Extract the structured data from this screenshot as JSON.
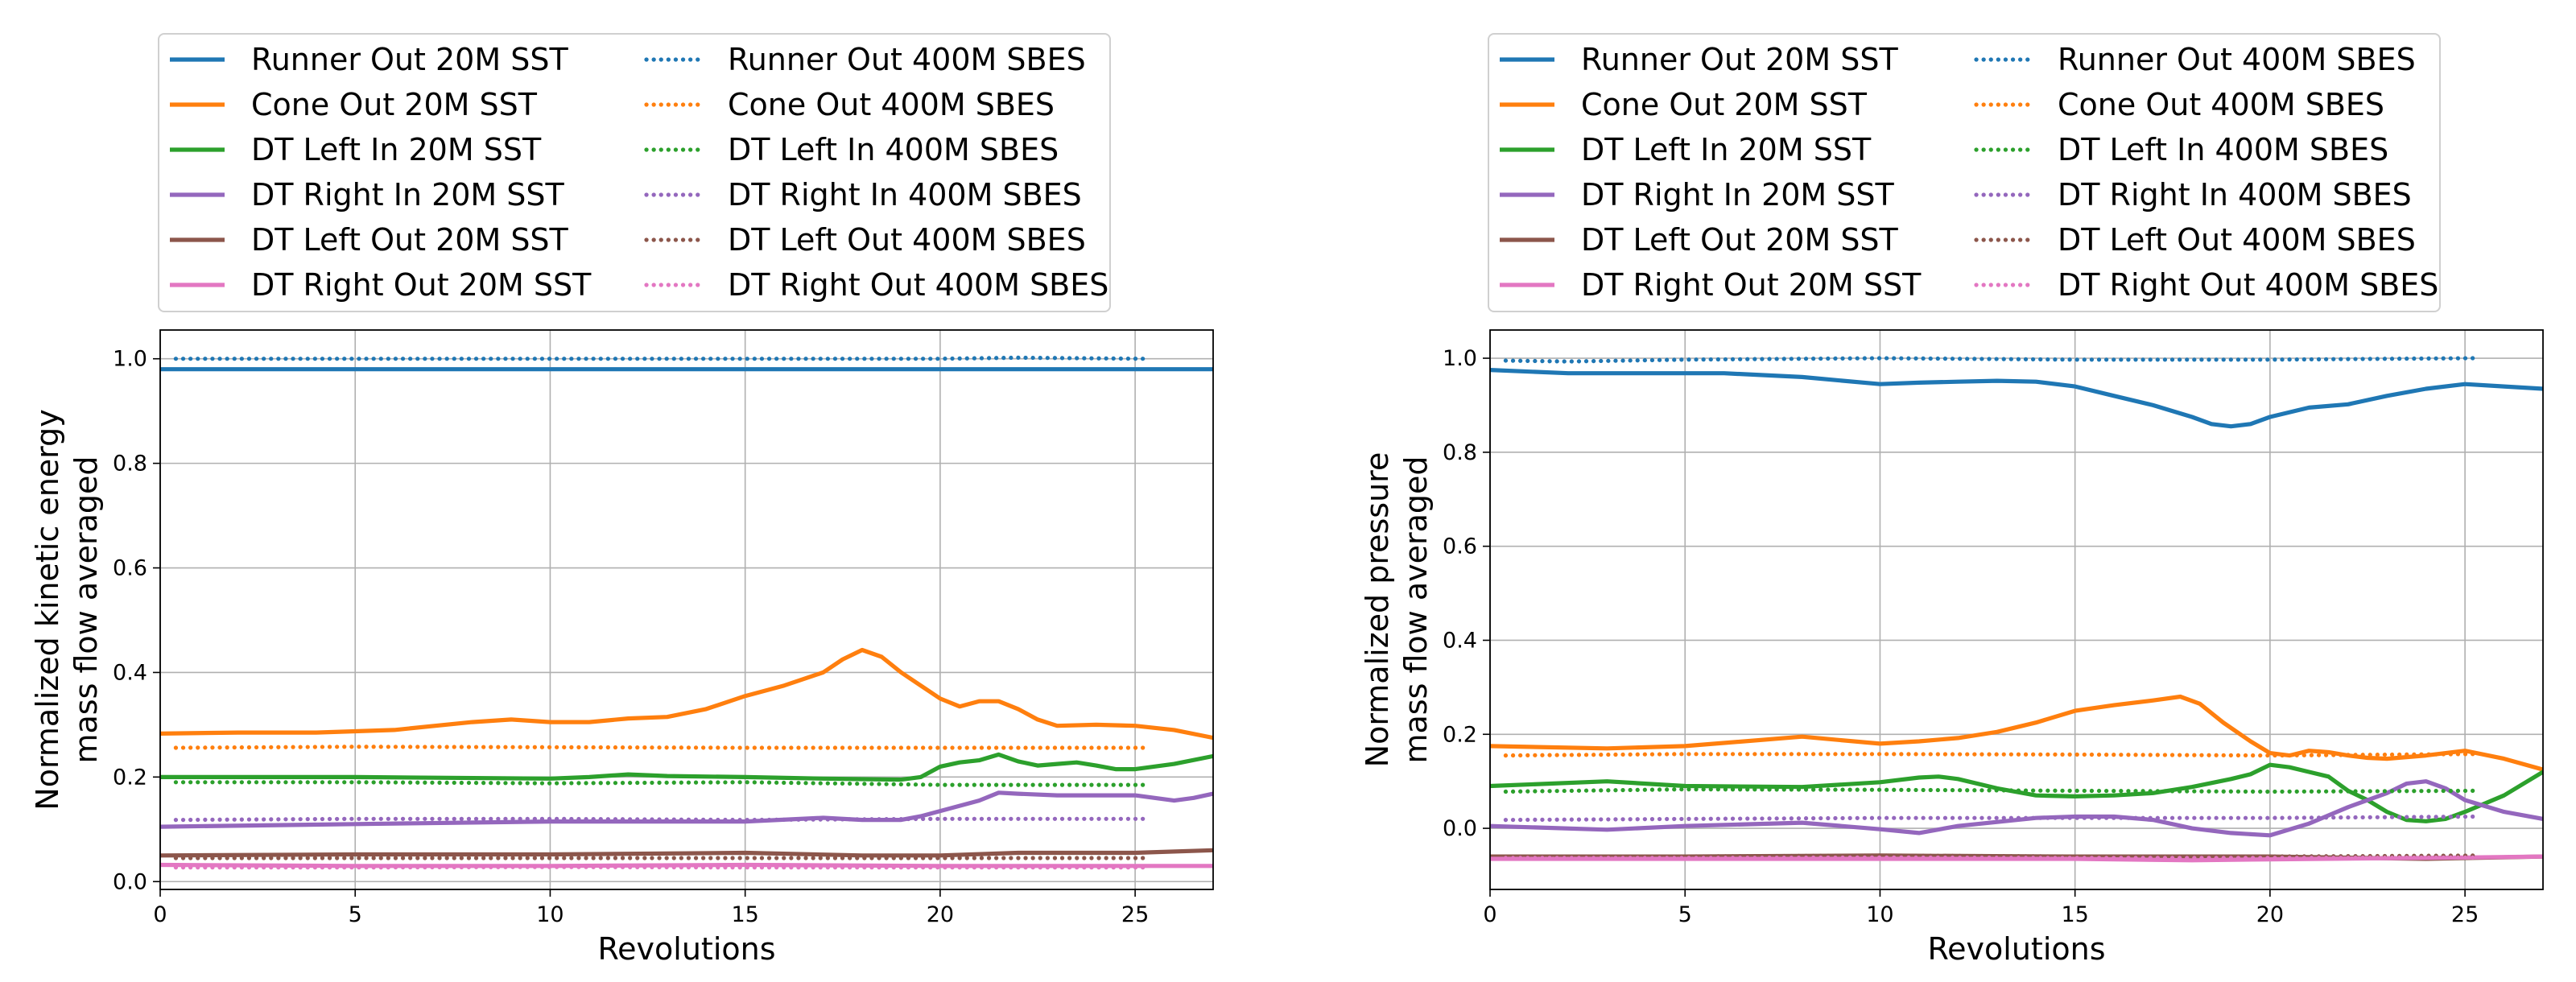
{
  "chart_data": [
    {
      "type": "line",
      "title": "",
      "xlabel": "Revolutions",
      "ylabel": "Normalized kinetic energy\nmass flow averaged",
      "xlim": [
        0,
        27
      ],
      "ylim": [
        -0.015,
        1.055
      ],
      "xticks": [
        0,
        5,
        10,
        15,
        20,
        25
      ],
      "yticks": [
        0.0,
        0.2,
        0.4,
        0.6,
        0.8,
        1.0
      ],
      "grid": true,
      "legend_location": "above",
      "series": [
        {
          "name": "Runner Out 20M SST",
          "color": "#1f77b4",
          "style": "solid",
          "x": [
            0,
            5,
            10,
            15,
            20,
            25,
            27
          ],
          "y": [
            0.98,
            0.98,
            0.98,
            0.98,
            0.98,
            0.98,
            0.98
          ]
        },
        {
          "name": "Cone Out 20M SST",
          "color": "#ff7f0e",
          "style": "solid",
          "x": [
            0,
            2,
            4,
            6,
            8,
            9,
            10,
            11,
            12,
            13,
            14,
            15,
            16,
            17,
            17.5,
            18,
            18.5,
            19,
            19.5,
            20,
            20.5,
            21,
            21.5,
            22,
            22.5,
            23,
            24,
            25,
            26,
            27
          ],
          "y": [
            0.283,
            0.285,
            0.285,
            0.29,
            0.305,
            0.31,
            0.305,
            0.305,
            0.312,
            0.315,
            0.33,
            0.355,
            0.375,
            0.4,
            0.425,
            0.443,
            0.43,
            0.4,
            0.375,
            0.35,
            0.335,
            0.345,
            0.345,
            0.33,
            0.31,
            0.298,
            0.3,
            0.298,
            0.29,
            0.275
          ]
        },
        {
          "name": "DT Left In 20M SST",
          "color": "#2ca02c",
          "style": "solid",
          "x": [
            0,
            5,
            10,
            11,
            12,
            13,
            15,
            17,
            19,
            19.5,
            20,
            20.5,
            21,
            21.5,
            22,
            22.5,
            23,
            23.5,
            24,
            24.5,
            25,
            26,
            27
          ],
          "y": [
            0.2,
            0.2,
            0.197,
            0.2,
            0.205,
            0.202,
            0.2,
            0.197,
            0.195,
            0.2,
            0.22,
            0.228,
            0.232,
            0.243,
            0.23,
            0.222,
            0.225,
            0.228,
            0.222,
            0.215,
            0.215,
            0.225,
            0.24
          ]
        },
        {
          "name": "DT Right In 20M SST",
          "color": "#9467bd",
          "style": "solid",
          "x": [
            0,
            5,
            10,
            15,
            17,
            18,
            19,
            19.5,
            20,
            20.5,
            21,
            21.5,
            22,
            23,
            24,
            25,
            26,
            26.5,
            27
          ],
          "y": [
            0.105,
            0.11,
            0.115,
            0.115,
            0.122,
            0.118,
            0.118,
            0.125,
            0.135,
            0.145,
            0.155,
            0.17,
            0.168,
            0.165,
            0.165,
            0.165,
            0.155,
            0.16,
            0.168
          ]
        },
        {
          "name": "DT Left Out 20M SST",
          "color": "#8c564b",
          "style": "solid",
          "x": [
            0,
            5,
            10,
            15,
            18,
            20,
            22,
            25,
            27
          ],
          "y": [
            0.05,
            0.052,
            0.052,
            0.055,
            0.05,
            0.05,
            0.055,
            0.055,
            0.06
          ]
        },
        {
          "name": "DT Right Out 20M SST",
          "color": "#e377c2",
          "style": "solid",
          "x": [
            0,
            5,
            10,
            15,
            20,
            25,
            27
          ],
          "y": [
            0.032,
            0.03,
            0.03,
            0.032,
            0.03,
            0.03,
            0.03
          ]
        },
        {
          "name": "Runner Out 400M SBES",
          "color": "#1f77b4",
          "style": "dotted",
          "x": [
            0.4,
            5,
            10,
            15,
            20,
            22,
            25.2
          ],
          "y": [
            1.0,
            1.0,
            1.0,
            1.0,
            1.0,
            1.002,
            1.0
          ]
        },
        {
          "name": "Cone Out 400M SBES",
          "color": "#ff7f0e",
          "style": "dotted",
          "x": [
            0.4,
            5,
            10,
            15,
            20,
            25.2
          ],
          "y": [
            0.256,
            0.258,
            0.257,
            0.256,
            0.256,
            0.256
          ]
        },
        {
          "name": "DT Left In 400M SBES",
          "color": "#2ca02c",
          "style": "dotted",
          "x": [
            0.4,
            5,
            10,
            15,
            20,
            25.2
          ],
          "y": [
            0.19,
            0.19,
            0.188,
            0.19,
            0.185,
            0.185
          ]
        },
        {
          "name": "DT Right In 400M SBES",
          "color": "#9467bd",
          "style": "dotted",
          "x": [
            0.4,
            5,
            10,
            15,
            20,
            25.2
          ],
          "y": [
            0.118,
            0.12,
            0.12,
            0.118,
            0.12,
            0.12
          ]
        },
        {
          "name": "DT Left Out 400M SBES",
          "color": "#8c564b",
          "style": "dotted",
          "x": [
            0.4,
            5,
            10,
            15,
            20,
            25.2
          ],
          "y": [
            0.045,
            0.045,
            0.045,
            0.045,
            0.045,
            0.045
          ]
        },
        {
          "name": "DT Right Out 400M SBES",
          "color": "#e377c2",
          "style": "dotted",
          "x": [
            0.4,
            5,
            10,
            15,
            20,
            25.2
          ],
          "y": [
            0.027,
            0.027,
            0.028,
            0.027,
            0.027,
            0.027
          ]
        }
      ]
    },
    {
      "type": "line",
      "title": "",
      "xlabel": "Revolutions",
      "ylabel": "Normalized pressure\nmass flow averaged",
      "xlim": [
        0,
        27
      ],
      "ylim": [
        -0.13,
        1.06
      ],
      "xticks": [
        0,
        5,
        10,
        15,
        20,
        25
      ],
      "yticks": [
        0.0,
        0.2,
        0.4,
        0.6,
        0.8,
        1.0
      ],
      "grid": true,
      "legend_location": "above",
      "series": [
        {
          "name": "Runner Out 20M SST",
          "color": "#1f77b4",
          "style": "solid",
          "x": [
            0,
            2,
            4,
            6,
            8,
            10,
            11,
            12,
            13,
            14,
            15,
            16,
            17,
            18,
            18.5,
            19,
            19.5,
            20,
            21,
            22,
            23,
            24,
            25,
            26,
            27
          ],
          "y": [
            0.975,
            0.968,
            0.968,
            0.968,
            0.96,
            0.945,
            0.948,
            0.95,
            0.952,
            0.95,
            0.94,
            0.92,
            0.9,
            0.875,
            0.86,
            0.855,
            0.86,
            0.875,
            0.895,
            0.902,
            0.92,
            0.935,
            0.945,
            0.94,
            0.935
          ]
        },
        {
          "name": "Cone Out 20M SST",
          "color": "#ff7f0e",
          "style": "solid",
          "x": [
            0,
            3,
            5,
            8,
            10,
            11,
            12,
            13,
            14,
            15,
            16,
            17,
            17.7,
            18.2,
            18.8,
            19.5,
            20,
            20.5,
            21,
            21.5,
            22,
            22.5,
            23,
            24,
            25,
            26,
            27
          ],
          "y": [
            0.175,
            0.17,
            0.175,
            0.195,
            0.18,
            0.185,
            0.192,
            0.205,
            0.225,
            0.25,
            0.262,
            0.272,
            0.28,
            0.265,
            0.225,
            0.185,
            0.16,
            0.155,
            0.165,
            0.162,
            0.155,
            0.15,
            0.148,
            0.155,
            0.165,
            0.148,
            0.125
          ]
        },
        {
          "name": "DT Left In 20M SST",
          "color": "#2ca02c",
          "style": "solid",
          "x": [
            0,
            3,
            5,
            8,
            10,
            11,
            11.5,
            12,
            13,
            14,
            15,
            16,
            17,
            18,
            19,
            19.5,
            20,
            20.5,
            21,
            21.5,
            22,
            22.5,
            23,
            23.5,
            24,
            24.5,
            25,
            26,
            27
          ],
          "y": [
            0.09,
            0.1,
            0.09,
            0.088,
            0.098,
            0.108,
            0.11,
            0.105,
            0.085,
            0.07,
            0.068,
            0.07,
            0.075,
            0.088,
            0.105,
            0.115,
            0.135,
            0.13,
            0.12,
            0.11,
            0.08,
            0.06,
            0.035,
            0.018,
            0.015,
            0.02,
            0.035,
            0.07,
            0.12
          ]
        },
        {
          "name": "DT Right In 20M SST",
          "color": "#9467bd",
          "style": "solid",
          "x": [
            0,
            3,
            5,
            8,
            10,
            11,
            12,
            14,
            15,
            16,
            17,
            18,
            19,
            20,
            21,
            22,
            23,
            23.5,
            24,
            24.5,
            25,
            26,
            27
          ],
          "y": [
            0.005,
            -0.003,
            0.005,
            0.012,
            -0.002,
            -0.01,
            0.005,
            0.022,
            0.025,
            0.025,
            0.018,
            0.0,
            -0.01,
            -0.015,
            0.01,
            0.045,
            0.075,
            0.095,
            0.1,
            0.085,
            0.06,
            0.035,
            0.02
          ]
        },
        {
          "name": "DT Left Out 20M SST",
          "color": "#8c564b",
          "style": "solid",
          "x": [
            0,
            5,
            10,
            15,
            20,
            24,
            27
          ],
          "y": [
            -0.06,
            -0.06,
            -0.058,
            -0.06,
            -0.06,
            -0.065,
            -0.06
          ]
        },
        {
          "name": "DT Right Out 20M SST",
          "color": "#e377c2",
          "style": "solid",
          "x": [
            0,
            5,
            10,
            15,
            18,
            20,
            25,
            27
          ],
          "y": [
            -0.065,
            -0.065,
            -0.065,
            -0.065,
            -0.068,
            -0.066,
            -0.062,
            -0.06
          ]
        },
        {
          "name": "Runner Out 400M SBES",
          "color": "#1f77b4",
          "style": "dotted",
          "x": [
            0.4,
            2,
            5,
            10,
            15,
            20,
            25.2
          ],
          "y": [
            0.995,
            0.993,
            0.997,
            1.0,
            0.997,
            0.997,
            1.0
          ]
        },
        {
          "name": "Cone Out 400M SBES",
          "color": "#ff7f0e",
          "style": "dotted",
          "x": [
            0.4,
            5,
            10,
            15,
            20,
            25.2
          ],
          "y": [
            0.155,
            0.158,
            0.158,
            0.157,
            0.155,
            0.158
          ]
        },
        {
          "name": "DT Left In 400M SBES",
          "color": "#2ca02c",
          "style": "dotted",
          "x": [
            0.4,
            5,
            10,
            15,
            20,
            25.2
          ],
          "y": [
            0.078,
            0.083,
            0.082,
            0.08,
            0.078,
            0.08
          ]
        },
        {
          "name": "DT Right In 400M SBES",
          "color": "#9467bd",
          "style": "dotted",
          "x": [
            0.4,
            5,
            10,
            15,
            20,
            25.2
          ],
          "y": [
            0.018,
            0.02,
            0.022,
            0.022,
            0.022,
            0.025
          ]
        },
        {
          "name": "DT Left Out 400M SBES",
          "color": "#8c564b",
          "style": "dotted",
          "x": [
            0.4,
            5,
            10,
            15,
            20,
            25.2
          ],
          "y": [
            -0.06,
            -0.06,
            -0.058,
            -0.06,
            -0.06,
            -0.058
          ]
        },
        {
          "name": "DT Right Out 400M SBES",
          "color": "#e377c2",
          "style": "dotted",
          "x": [
            0.4,
            5,
            10,
            15,
            20,
            25.2
          ],
          "y": [
            -0.063,
            -0.063,
            -0.062,
            -0.063,
            -0.063,
            -0.062
          ]
        }
      ]
    }
  ]
}
